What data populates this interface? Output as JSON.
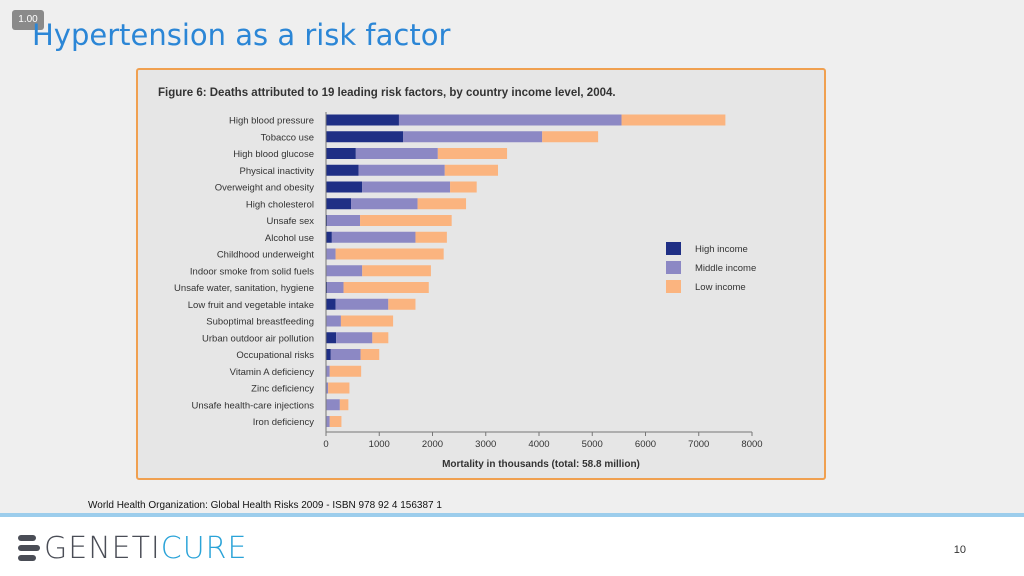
{
  "zoom": "1.00",
  "slide": {
    "title": "Hypertension as a risk factor",
    "source": "World Health Organization: Global Health Risks 2009 - ISBN 978 92 4 156387 1",
    "page_number": "10",
    "logo": {
      "part1": "GENETI",
      "part2": "CURE"
    }
  },
  "colors": {
    "frame": "#f0a050",
    "high_income": "#1f2f85",
    "middle_income": "#8c88c4",
    "low_income": "#fbb47f",
    "title": "#2b86d6"
  },
  "chart_data": {
    "type": "bar",
    "orientation": "horizontal",
    "stacked": true,
    "title": "Figure 6: Deaths attributed to 19 leading risk factors, by country income level, 2004.",
    "xlabel": "Mortality in thousands (total: 58.8 million)",
    "ylabel": "",
    "xlim": [
      0,
      8000
    ],
    "xticks": [
      "0",
      "1000",
      "2000",
      "3000",
      "4000",
      "5000",
      "6000",
      "7000",
      "8000"
    ],
    "grid": false,
    "legend_position": "right",
    "categories": [
      "High blood pressure",
      "Tobacco use",
      "High blood glucose",
      "Physical inactivity",
      "Overweight and obesity",
      "High cholesterol",
      "Unsafe sex",
      "Alcohol use",
      "Childhood underweight",
      "Indoor smoke from solid fuels",
      "Unsafe water, sanitation, hygiene",
      "Low fruit and vegetable intake",
      "Suboptimal breastfeeding",
      "Urban outdoor air pollution",
      "Occupational risks",
      "Vitamin A deficiency",
      "Zinc deficiency",
      "Unsafe health-care injections",
      "Iron deficiency"
    ],
    "series": [
      {
        "name": "High income",
        "color": "#1f2f85",
        "values": [
          1370,
          1450,
          560,
          610,
          680,
          470,
          20,
          110,
          10,
          10,
          20,
          180,
          10,
          190,
          90,
          10,
          10,
          10,
          10
        ]
      },
      {
        "name": "Middle income",
        "color": "#8c88c4",
        "values": [
          4180,
          2610,
          1540,
          1620,
          1650,
          1250,
          620,
          1570,
          170,
          670,
          310,
          990,
          270,
          680,
          560,
          60,
          30,
          250,
          60
        ]
      },
      {
        "name": "Low income",
        "color": "#fbb47f",
        "values": [
          1950,
          1050,
          1300,
          1000,
          500,
          910,
          1720,
          590,
          2030,
          1290,
          1600,
          510,
          980,
          300,
          350,
          590,
          400,
          160,
          220
        ]
      }
    ]
  }
}
